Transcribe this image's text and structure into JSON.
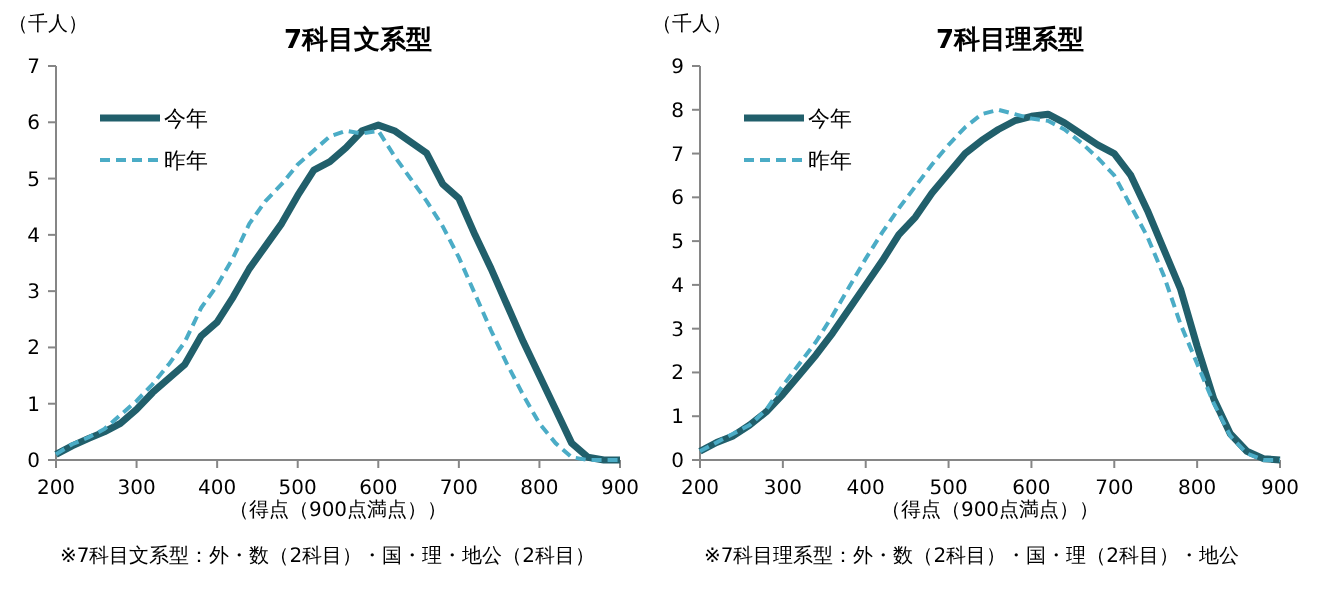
{
  "chart_data": [
    {
      "type": "line",
      "title": "7科目文系型",
      "ylabel": "（千人）",
      "xlabel": "（得点（900点満点））",
      "annotations": [
        "※7科目文系型：外・数（2科目）・国・理・地公（2科目）"
      ],
      "legend": "top left",
      "grid": false,
      "marker": "none",
      "x": [
        200,
        220,
        240,
        260,
        280,
        300,
        320,
        340,
        360,
        380,
        400,
        420,
        440,
        460,
        480,
        500,
        520,
        540,
        560,
        580,
        600,
        620,
        640,
        660,
        680,
        700,
        720,
        740,
        760,
        780,
        800,
        820,
        840,
        860,
        880,
        900
      ],
      "xlim": [
        200,
        900
      ],
      "xticks": [
        200,
        300,
        400,
        500,
        600,
        700,
        800,
        900
      ],
      "ylim": [
        0,
        7
      ],
      "yticks": [
        0,
        1,
        2,
        3,
        4,
        5,
        6,
        7
      ],
      "series": [
        {
          "name": "今年",
          "color": "#215f6b",
          "line_style": "solid",
          "values": [
            0.1,
            0.25,
            0.38,
            0.5,
            0.65,
            0.9,
            1.2,
            1.45,
            1.7,
            2.2,
            2.45,
            2.9,
            3.4,
            3.8,
            4.2,
            4.7,
            5.15,
            5.3,
            5.55,
            5.85,
            5.95,
            5.85,
            5.65,
            5.45,
            4.9,
            4.65,
            4.0,
            3.4,
            2.75,
            2.1,
            1.5,
            0.9,
            0.3,
            0.05,
            0,
            0
          ]
        },
        {
          "name": "昨年",
          "color": "#4bacc6",
          "line_style": "dashed",
          "values": [
            0.1,
            0.28,
            0.4,
            0.55,
            0.8,
            1.05,
            1.35,
            1.7,
            2.1,
            2.7,
            3.1,
            3.6,
            4.2,
            4.6,
            4.9,
            5.25,
            5.5,
            5.75,
            5.85,
            5.8,
            5.85,
            5.4,
            5.0,
            4.6,
            4.15,
            3.6,
            2.95,
            2.3,
            1.7,
            1.15,
            0.65,
            0.3,
            0.05,
            0,
            0,
            0
          ]
        }
      ]
    },
    {
      "type": "line",
      "title": "7科目理系型",
      "ylabel": "（千人）",
      "xlabel": "（得点（900点満点））",
      "annotations": [
        "※7科目理系型：外・数（2科目）・国・理（2科目）・地公"
      ],
      "legend": "top left",
      "grid": false,
      "marker": "none",
      "x": [
        200,
        220,
        240,
        260,
        280,
        300,
        320,
        340,
        360,
        380,
        400,
        420,
        440,
        460,
        480,
        500,
        520,
        540,
        560,
        580,
        600,
        620,
        640,
        660,
        680,
        700,
        720,
        740,
        760,
        780,
        800,
        820,
        840,
        860,
        880,
        900
      ],
      "xlim": [
        200,
        900
      ],
      "xticks": [
        200,
        300,
        400,
        500,
        600,
        700,
        800,
        900
      ],
      "ylim": [
        0,
        9
      ],
      "yticks": [
        0,
        1,
        2,
        3,
        4,
        5,
        6,
        7,
        8,
        9
      ],
      "series": [
        {
          "name": "今年",
          "color": "#215f6b",
          "line_style": "solid",
          "values": [
            0.2,
            0.4,
            0.55,
            0.8,
            1.1,
            1.5,
            1.95,
            2.4,
            2.9,
            3.45,
            4.0,
            4.55,
            5.15,
            5.55,
            6.1,
            6.55,
            7.0,
            7.3,
            7.55,
            7.75,
            7.85,
            7.9,
            7.7,
            7.45,
            7.2,
            7.0,
            6.5,
            5.7,
            4.8,
            3.9,
            2.6,
            1.4,
            0.6,
            0.2,
            0.03,
            0
          ]
        },
        {
          "name": "昨年",
          "color": "#4bacc6",
          "line_style": "dashed",
          "values": [
            0.2,
            0.4,
            0.6,
            0.8,
            1.15,
            1.7,
            2.2,
            2.7,
            3.3,
            3.95,
            4.6,
            5.2,
            5.75,
            6.25,
            6.75,
            7.2,
            7.6,
            7.9,
            8.0,
            7.9,
            7.8,
            7.75,
            7.55,
            7.25,
            6.9,
            6.5,
            5.8,
            5.1,
            4.2,
            3.1,
            2.2,
            1.3,
            0.55,
            0.15,
            0,
            0
          ]
        }
      ]
    }
  ]
}
